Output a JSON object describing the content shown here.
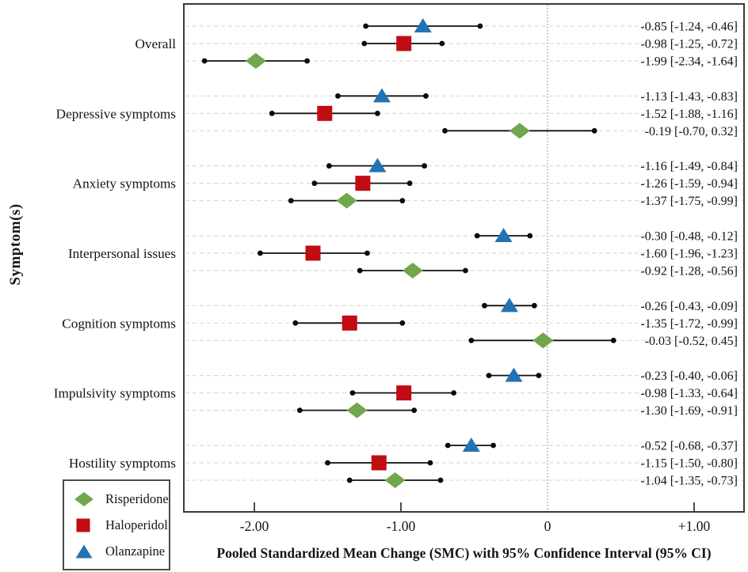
{
  "chart_data": {
    "type": "scatter",
    "subtype": "forest-plot",
    "title": "",
    "xlabel": "Pooled Standardized Mean Change (SMC) with 95% Confidence Interval (95% CI)",
    "ylabel": "Symptom(s)",
    "xlim": [
      -2.48,
      1.34
    ],
    "x_ticks": [
      {
        "value": -2,
        "label": "-2.00"
      },
      {
        "value": -1,
        "label": "-1.00"
      },
      {
        "value": 0,
        "label": "0"
      },
      {
        "value": 1,
        "label": "+1.00"
      }
    ],
    "zero_reference_line": 0,
    "grid": "dashed light-gray horizontal guide per row",
    "legend": {
      "position": "bottom-left",
      "items": [
        {
          "label": "Risperidone",
          "marker": "diamond",
          "color": "#70a64c"
        },
        {
          "label": "Haloperidol",
          "marker": "square",
          "color": "#c00c12"
        },
        {
          "label": "Olanzapine",
          "marker": "triangle",
          "color": "#2173b4"
        }
      ]
    },
    "row_order_within_group": [
      "Olanzapine",
      "Haloperidol",
      "Risperidone"
    ],
    "groups": [
      {
        "category": "Overall",
        "rows": [
          {
            "drug": "Olanzapine",
            "mean": -0.85,
            "ci_low": -1.24,
            "ci_high": -0.46,
            "label": "-0.85 [-1.24, -0.46]"
          },
          {
            "drug": "Haloperidol",
            "mean": -0.98,
            "ci_low": -1.25,
            "ci_high": -0.72,
            "label": "-0.98 [-1.25, -0.72]"
          },
          {
            "drug": "Risperidone",
            "mean": -1.99,
            "ci_low": -2.34,
            "ci_high": -1.64,
            "label": "-1.99 [-2.34, -1.64]"
          }
        ]
      },
      {
        "category": "Depressive symptoms",
        "rows": [
          {
            "drug": "Olanzapine",
            "mean": -1.13,
            "ci_low": -1.43,
            "ci_high": -0.83,
            "label": "-1.13 [-1.43, -0.83]"
          },
          {
            "drug": "Haloperidol",
            "mean": -1.52,
            "ci_low": -1.88,
            "ci_high": -1.16,
            "label": "-1.52 [-1.88, -1.16]"
          },
          {
            "drug": "Risperidone",
            "mean": -0.19,
            "ci_low": -0.7,
            "ci_high": 0.32,
            "label": "-0.19 [-0.70, 0.32]"
          }
        ]
      },
      {
        "category": "Anxiety symptoms",
        "rows": [
          {
            "drug": "Olanzapine",
            "mean": -1.16,
            "ci_low": -1.49,
            "ci_high": -0.84,
            "label": "-1.16 [-1.49, -0.84]"
          },
          {
            "drug": "Haloperidol",
            "mean": -1.26,
            "ci_low": -1.59,
            "ci_high": -0.94,
            "label": "-1.26 [-1.59, -0.94]"
          },
          {
            "drug": "Risperidone",
            "mean": -1.37,
            "ci_low": -1.75,
            "ci_high": -0.99,
            "label": "-1.37 [-1.75, -0.99]"
          }
        ]
      },
      {
        "category": "Interpersonal issues",
        "rows": [
          {
            "drug": "Olanzapine",
            "mean": -0.3,
            "ci_low": -0.48,
            "ci_high": -0.12,
            "label": "-0.30 [-0.48, -0.12]"
          },
          {
            "drug": "Haloperidol",
            "mean": -1.6,
            "ci_low": -1.96,
            "ci_high": -1.23,
            "label": "-1.60 [-1.96, -1.23]"
          },
          {
            "drug": "Risperidone",
            "mean": -0.92,
            "ci_low": -1.28,
            "ci_high": -0.56,
            "label": "-0.92 [-1.28, -0.56]"
          }
        ]
      },
      {
        "category": "Cognition symptoms",
        "rows": [
          {
            "drug": "Olanzapine",
            "mean": -0.26,
            "ci_low": -0.43,
            "ci_high": -0.09,
            "label": "-0.26 [-0.43, -0.09]"
          },
          {
            "drug": "Haloperidol",
            "mean": -1.35,
            "ci_low": -1.72,
            "ci_high": -0.99,
            "label": "-1.35 [-1.72, -0.99]"
          },
          {
            "drug": "Risperidone",
            "mean": -0.03,
            "ci_low": -0.52,
            "ci_high": 0.45,
            "label": "-0.03 [-0.52, 0.45]"
          }
        ]
      },
      {
        "category": "Impulsivity symptoms",
        "rows": [
          {
            "drug": "Olanzapine",
            "mean": -0.23,
            "ci_low": -0.4,
            "ci_high": -0.06,
            "label": "-0.23 [-0.40, -0.06]"
          },
          {
            "drug": "Haloperidol",
            "mean": -0.98,
            "ci_low": -1.33,
            "ci_high": -0.64,
            "label": "-0.98 [-1.33, -0.64]"
          },
          {
            "drug": "Risperidone",
            "mean": -1.3,
            "ci_low": -1.69,
            "ci_high": -0.91,
            "label": "-1.30 [-1.69, -0.91]"
          }
        ]
      },
      {
        "category": "Hostility symptoms",
        "rows": [
          {
            "drug": "Olanzapine",
            "mean": -0.52,
            "ci_low": -0.68,
            "ci_high": -0.37,
            "label": "-0.52 [-0.68, -0.37]"
          },
          {
            "drug": "Haloperidol",
            "mean": -1.15,
            "ci_low": -1.5,
            "ci_high": -0.8,
            "label": "-1.15 [-1.50, -0.80]"
          },
          {
            "drug": "Risperidone",
            "mean": -1.04,
            "ci_low": -1.35,
            "ci_high": -0.73,
            "label": "-1.04 [-1.35, -0.73]"
          }
        ]
      }
    ]
  }
}
